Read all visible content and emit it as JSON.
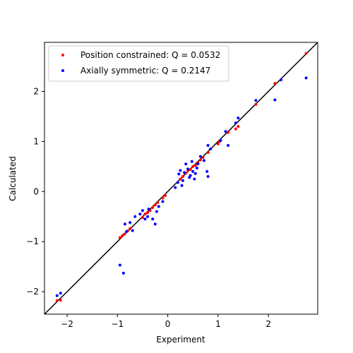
{
  "chart_data": {
    "type": "scatter",
    "title": "",
    "xlabel": "Experiment",
    "ylabel": "Calculated",
    "xlim": [
      -2.45,
      2.98
    ],
    "ylim": [
      -2.45,
      2.98
    ],
    "xticks": [
      -2,
      -1,
      0,
      1,
      2
    ],
    "yticks": [
      -2,
      -1,
      0,
      1,
      2
    ],
    "grid": false,
    "legend_position": "top-left",
    "reference_line": {
      "color": "#000000",
      "from": [
        -2.45,
        -2.45
      ],
      "to": [
        2.98,
        2.98
      ]
    },
    "series": [
      {
        "name": "Position constrained: Q = 0.0532",
        "color": "#ff0000",
        "points": [
          [
            -2.2,
            -2.18
          ],
          [
            -2.13,
            -2.17
          ],
          [
            -0.95,
            -0.92
          ],
          [
            -0.9,
            -0.88
          ],
          [
            -0.86,
            -0.85
          ],
          [
            -0.8,
            -0.79
          ],
          [
            -0.75,
            -0.74
          ],
          [
            -0.5,
            -0.52
          ],
          [
            -0.45,
            -0.45
          ],
          [
            -0.4,
            -0.42
          ],
          [
            -0.35,
            -0.38
          ],
          [
            -0.3,
            -0.32
          ],
          [
            -0.25,
            -0.27
          ],
          [
            -0.2,
            -0.22
          ],
          [
            -0.1,
            -0.13
          ],
          [
            -0.05,
            -0.08
          ],
          [
            0.25,
            0.25
          ],
          [
            0.3,
            0.3
          ],
          [
            0.35,
            0.36
          ],
          [
            0.4,
            0.42
          ],
          [
            0.45,
            0.44
          ],
          [
            0.5,
            0.5
          ],
          [
            0.55,
            0.52
          ],
          [
            0.6,
            0.58
          ],
          [
            0.65,
            0.63
          ],
          [
            0.7,
            0.68
          ],
          [
            0.8,
            0.78
          ],
          [
            1.0,
            0.95
          ],
          [
            1.03,
            1.0
          ],
          [
            1.2,
            1.18
          ],
          [
            1.35,
            1.25
          ],
          [
            1.4,
            1.3
          ],
          [
            1.75,
            1.74
          ],
          [
            2.13,
            2.16
          ],
          [
            2.75,
            2.76
          ]
        ]
      },
      {
        "name": "Axially symmetric: Q = 0.2147",
        "color": "#0000ff",
        "points": [
          [
            -2.2,
            -2.08
          ],
          [
            -2.13,
            -2.03
          ],
          [
            -0.95,
            -1.47
          ],
          [
            -0.88,
            -1.63
          ],
          [
            -0.85,
            -0.65
          ],
          [
            -0.82,
            -0.8
          ],
          [
            -0.75,
            -0.62
          ],
          [
            -0.7,
            -0.78
          ],
          [
            -0.65,
            -0.5
          ],
          [
            -0.55,
            -0.45
          ],
          [
            -0.5,
            -0.38
          ],
          [
            -0.45,
            -0.55
          ],
          [
            -0.4,
            -0.5
          ],
          [
            -0.38,
            -0.35
          ],
          [
            -0.3,
            -0.55
          ],
          [
            -0.25,
            -0.65
          ],
          [
            -0.22,
            -0.4
          ],
          [
            -0.18,
            -0.3
          ],
          [
            -0.1,
            -0.2
          ],
          [
            0.15,
            0.08
          ],
          [
            0.2,
            0.18
          ],
          [
            0.22,
            0.35
          ],
          [
            0.25,
            0.42
          ],
          [
            0.28,
            0.12
          ],
          [
            0.3,
            0.22
          ],
          [
            0.33,
            0.38
          ],
          [
            0.36,
            0.55
          ],
          [
            0.4,
            0.45
          ],
          [
            0.43,
            0.28
          ],
          [
            0.45,
            0.32
          ],
          [
            0.48,
            0.6
          ],
          [
            0.5,
            0.4
          ],
          [
            0.53,
            0.25
          ],
          [
            0.55,
            0.36
          ],
          [
            0.58,
            0.47
          ],
          [
            0.6,
            0.55
          ],
          [
            0.65,
            0.7
          ],
          [
            0.72,
            0.62
          ],
          [
            0.78,
            0.4
          ],
          [
            0.8,
            0.3
          ],
          [
            0.8,
            0.92
          ],
          [
            0.85,
            0.85
          ],
          [
            1.05,
            1.02
          ],
          [
            1.15,
            1.2
          ],
          [
            1.2,
            0.92
          ],
          [
            1.35,
            1.37
          ],
          [
            1.4,
            1.47
          ],
          [
            1.75,
            1.82
          ],
          [
            2.13,
            1.83
          ],
          [
            2.25,
            2.23
          ],
          [
            2.75,
            2.27
          ]
        ]
      }
    ]
  }
}
